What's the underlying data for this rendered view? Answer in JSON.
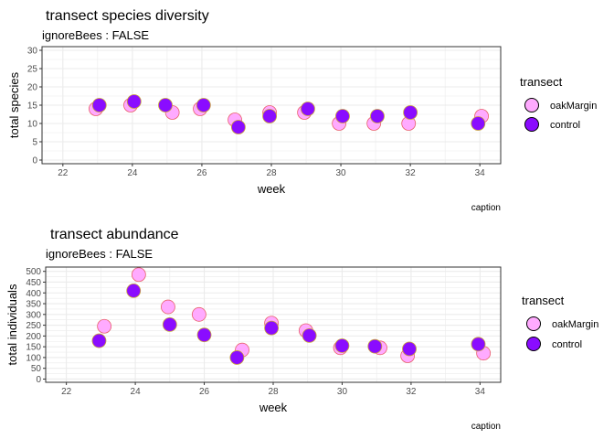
{
  "colors": {
    "oakMargin_fill": "#ffaaff",
    "oakMargin_stroke": "#e8606a",
    "control_fill": "#8a0cff",
    "control_stroke": "#c9a23a",
    "panel_border": "#333333",
    "grid": "#ebebeb"
  },
  "chart_data": [
    {
      "type": "scatter",
      "title": "transect species diversity",
      "subtitle": "ignoreBees : FALSE",
      "xlabel": "week",
      "ylabel": "total species",
      "caption": "caption",
      "xlim": [
        21.4,
        34.6
      ],
      "ylim": [
        -1,
        31
      ],
      "x_ticks": [
        22,
        24,
        26,
        28,
        30,
        32,
        34
      ],
      "y_ticks": [
        0,
        5,
        10,
        15,
        20,
        25,
        30
      ],
      "grid": true,
      "legend": {
        "title": "transect",
        "position": "right",
        "entries": [
          "oakMargin",
          "control"
        ]
      },
      "series": [
        {
          "name": "oakMargin",
          "x": [
            22.95,
            23.95,
            25.15,
            25.95,
            26.95,
            27.95,
            28.95,
            29.95,
            30.95,
            31.95,
            34.05
          ],
          "y": [
            14,
            15,
            13,
            14,
            11,
            13,
            13,
            10,
            10,
            10,
            12
          ]
        },
        {
          "name": "control",
          "x": [
            23.05,
            24.05,
            24.95,
            26.05,
            27.05,
            27.95,
            29.05,
            30.05,
            31.05,
            32.0,
            33.95
          ],
          "y": [
            15,
            16,
            15,
            15,
            9,
            12,
            14,
            12,
            12,
            13,
            10
          ]
        }
      ]
    },
    {
      "type": "scatter",
      "title": "transect abundance",
      "subtitle": "ignoreBees : FALSE",
      "xlabel": "week",
      "ylabel": "total individuals",
      "caption": "caption",
      "xlim": [
        21.4,
        34.6
      ],
      "ylim": [
        -15,
        520
      ],
      "x_ticks": [
        22,
        24,
        26,
        28,
        30,
        32,
        34
      ],
      "y_ticks": [
        0,
        50,
        100,
        150,
        200,
        250,
        300,
        350,
        400,
        450,
        500
      ],
      "grid": true,
      "legend": {
        "title": "transect",
        "position": "right",
        "entries": [
          "oakMargin",
          "control"
        ]
      },
      "series": [
        {
          "name": "oakMargin",
          "x": [
            23.1,
            24.1,
            24.95,
            25.85,
            27.1,
            27.95,
            28.95,
            29.95,
            31.1,
            31.9,
            34.1
          ],
          "y": [
            245,
            485,
            335,
            300,
            135,
            260,
            225,
            145,
            145,
            108,
            120
          ]
        },
        {
          "name": "control",
          "x": [
            22.95,
            23.95,
            25.0,
            26.0,
            26.95,
            27.95,
            29.05,
            30.0,
            30.95,
            31.95,
            33.95
          ],
          "y": [
            178,
            410,
            253,
            205,
            100,
            237,
            202,
            155,
            152,
            140,
            162
          ]
        }
      ]
    }
  ]
}
